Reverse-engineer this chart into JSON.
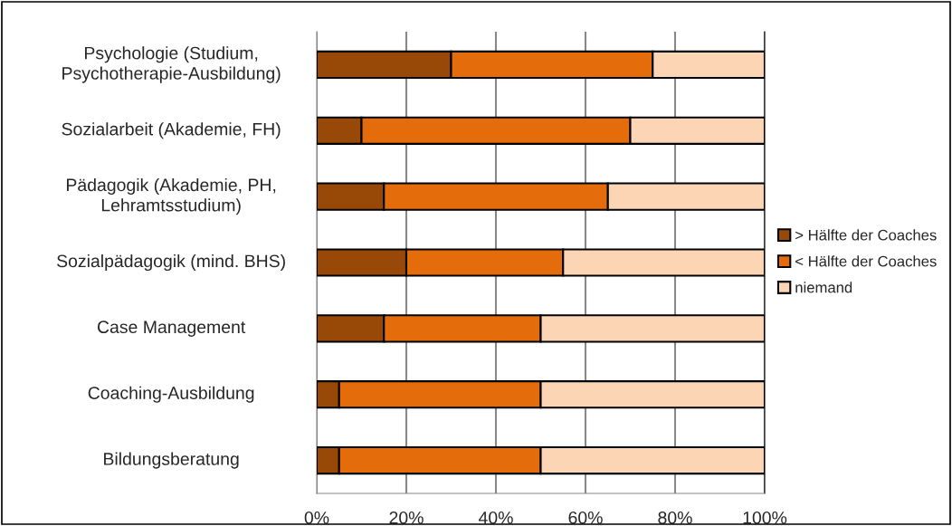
{
  "chart_data": {
    "type": "bar",
    "orientation": "horizontal",
    "stacked": true,
    "categories": [
      "Psychologie (Studium,\nPsychotherapie-Ausbildung)",
      "Sozialarbeit (Akademie, FH)",
      "Pädagogik (Akademie, PH,\nLehramtsstudium)",
      "Sozialpädagogik (mind. BHS)",
      "Case Management",
      "Coaching-Ausbildung",
      "Bildungsberatung"
    ],
    "series": [
      {
        "name": "> Hälfte der Coaches",
        "color": "#984807",
        "values": [
          30,
          10,
          15,
          20,
          15,
          5,
          5
        ]
      },
      {
        "name": "< Hälfte der Coaches",
        "color": "#e46c0a",
        "values": [
          45,
          60,
          50,
          35,
          35,
          45,
          45
        ]
      },
      {
        "name": "niemand",
        "color": "#fcd5b5",
        "values": [
          25,
          30,
          35,
          45,
          50,
          50,
          50
        ]
      }
    ],
    "xlim": [
      0,
      100
    ],
    "xticks": [
      {
        "value": 0,
        "label": "0%"
      },
      {
        "value": 20,
        "label": "20%"
      },
      {
        "value": 40,
        "label": "40%"
      },
      {
        "value": 60,
        "label": "60%"
      },
      {
        "value": 80,
        "label": "80%"
      },
      {
        "value": 100,
        "label": "100%"
      }
    ],
    "grid": "x",
    "legend": "right"
  }
}
